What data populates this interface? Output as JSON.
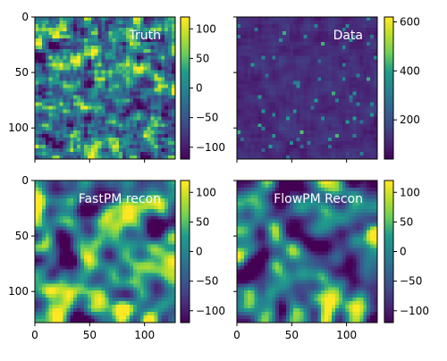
{
  "figure": {
    "colormap": "viridis",
    "viridis_stops": [
      "#440154",
      "#482777",
      "#3f4a8a",
      "#31678e",
      "#26838f",
      "#1f9d8a",
      "#6cce5a",
      "#b6de2b",
      "#fee825"
    ],
    "title_color": "#ffffff",
    "axis_color": "#000000"
  },
  "chart_data": [
    {
      "type": "heatmap",
      "title": "Truth",
      "field": "density-field",
      "grid_size": [
        128,
        128
      ],
      "xlim": [
        0,
        128
      ],
      "ylim": [
        128,
        0
      ],
      "xticks": [
        0,
        50,
        100
      ],
      "yticks": [
        0,
        50,
        100
      ],
      "show_xticklabels": false,
      "show_yticklabels": true,
      "vmin": -120,
      "vmax": 120,
      "colorbar_ticks": [
        100,
        50,
        0,
        -50,
        -100
      ],
      "colorbar_ticklabels": [
        "100",
        "50",
        "0",
        "−50",
        "−100"
      ]
    },
    {
      "type": "heatmap",
      "title": "Data",
      "field": "observed-data",
      "grid_size": [
        128,
        128
      ],
      "xlim": [
        0,
        128
      ],
      "ylim": [
        128,
        0
      ],
      "xticks": [
        0,
        50,
        100
      ],
      "yticks": [
        0,
        50,
        100
      ],
      "show_xticklabels": false,
      "show_yticklabels": false,
      "vmin": 40,
      "vmax": 620,
      "colorbar_ticks": [
        600,
        400,
        200
      ],
      "colorbar_ticklabels": [
        "600",
        "400",
        "200"
      ]
    },
    {
      "type": "heatmap",
      "title": "FastPM recon",
      "field": "smooth-reconstruction",
      "grid_size": [
        128,
        128
      ],
      "xlim": [
        0,
        128
      ],
      "ylim": [
        128,
        0
      ],
      "xticks": [
        0,
        50,
        100
      ],
      "yticks": [
        0,
        50,
        100
      ],
      "show_xticklabels": true,
      "show_yticklabels": true,
      "vmin": -120,
      "vmax": 120,
      "colorbar_ticks": [
        100,
        50,
        0,
        -50,
        -100
      ],
      "colorbar_ticklabels": [
        "100",
        "50",
        "0",
        "−50",
        "−100"
      ]
    },
    {
      "type": "heatmap",
      "title": "FlowPM Recon",
      "field": "smooth-reconstruction",
      "grid_size": [
        128,
        128
      ],
      "xlim": [
        0,
        128
      ],
      "ylim": [
        128,
        0
      ],
      "xticks": [
        0,
        50,
        100
      ],
      "yticks": [
        0,
        50,
        100
      ],
      "show_xticklabels": true,
      "show_yticklabels": false,
      "vmin": -120,
      "vmax": 120,
      "colorbar_ticks": [
        100,
        50,
        0,
        -50,
        -100
      ],
      "colorbar_ticklabels": [
        "100",
        "50",
        "0",
        "−50",
        "−100"
      ]
    }
  ]
}
